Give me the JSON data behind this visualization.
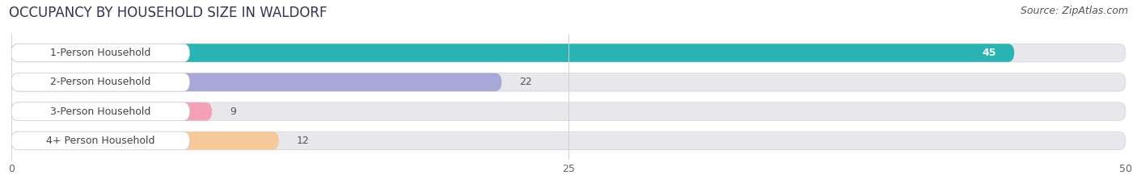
{
  "title": "OCCUPANCY BY HOUSEHOLD SIZE IN WALDORF",
  "source": "Source: ZipAtlas.com",
  "categories": [
    "1-Person Household",
    "2-Person Household",
    "3-Person Household",
    "4+ Person Household"
  ],
  "values": [
    45,
    22,
    9,
    12
  ],
  "bar_colors": [
    "#29b3b3",
    "#a8a8d8",
    "#f4a0b5",
    "#f5c99a"
  ],
  "bar_bg_color": "#e8e8ec",
  "label_bg_color": "#ffffff",
  "xlim": [
    0,
    50
  ],
  "xticks": [
    0,
    25,
    50
  ],
  "label_color_inside": "#ffffff",
  "label_color_outside": "#555555",
  "title_fontsize": 12,
  "source_fontsize": 9,
  "tick_fontsize": 9,
  "bar_label_fontsize": 9,
  "cat_label_fontsize": 9,
  "background_color": "#ffffff",
  "fig_width": 14.06,
  "fig_height": 2.33
}
